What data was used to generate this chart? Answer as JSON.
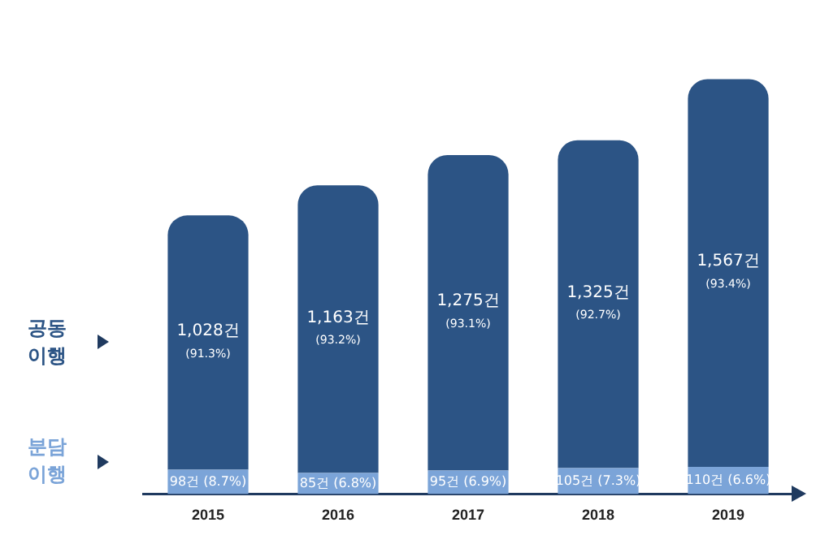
{
  "chart_data": {
    "type": "bar",
    "stacked": true,
    "categories": [
      "2015",
      "2016",
      "2017",
      "2018",
      "2019"
    ],
    "series": [
      {
        "name": "분담 이행",
        "color": "#7ba4d8",
        "values": [
          98,
          85,
          95,
          105,
          110
        ],
        "value_labels": [
          "98건\n(8.7%)",
          "85건\n(6.8%)",
          "95건\n(6.9%)",
          "105건\n(7.3%)",
          "110건\n(6.6%)"
        ]
      },
      {
        "name": "공동 이행",
        "color": "#2c5485",
        "values": [
          1028,
          1163,
          1275,
          1325,
          1567
        ],
        "value_labels": [
          "1,028건\n(91.3%)",
          "1,163건\n(93.2%)",
          "1,275건\n(93.1%)",
          "1,325건\n(92.7%)",
          "1,567건\n(93.4%)"
        ]
      }
    ]
  }
}
